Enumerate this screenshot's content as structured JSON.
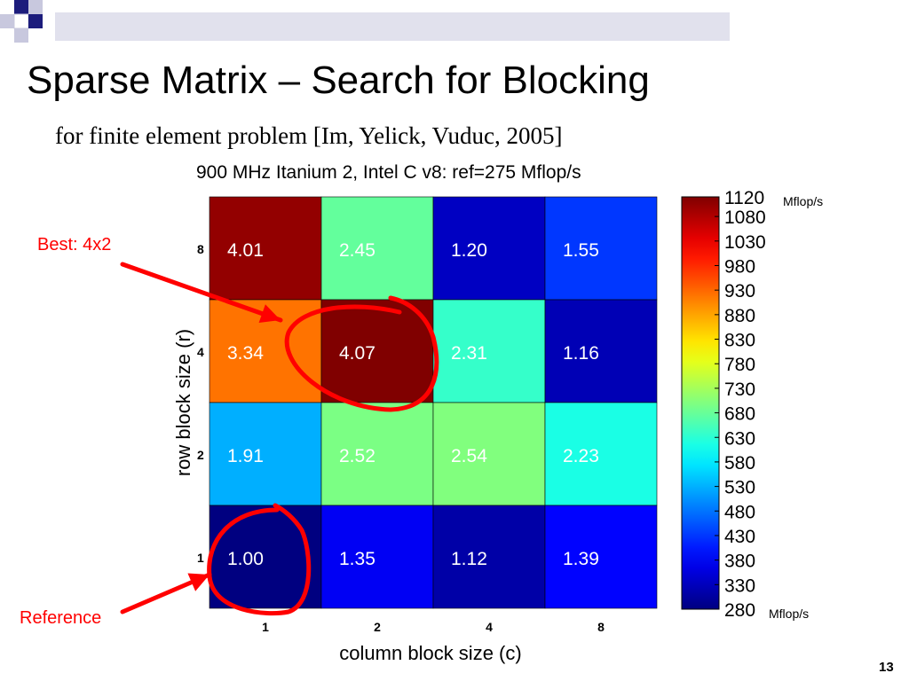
{
  "slide": {
    "title": "Sparse Matrix – Search for Blocking",
    "subtitle": "for finite element problem [Im, Yelick, Vuduc, 2005]",
    "page_number": "13",
    "annotations": {
      "best": "Best: 4x2",
      "reference": "Reference"
    },
    "colors": {
      "annotation": "#ff0000",
      "deco_dark": "#1c1c7c",
      "deco_light": "#c8c8de"
    }
  },
  "chart_data": {
    "type": "heatmap",
    "title": "900 MHz Itanium 2, Intel C v8: ref=275 Mflop/s",
    "xlabel": "column block size (c)",
    "ylabel": "row block size (r)",
    "x_categories": [
      "1",
      "2",
      "4",
      "8"
    ],
    "y_categories": [
      "8",
      "4",
      "2",
      "1"
    ],
    "values": [
      [
        4.01,
        2.45,
        1.2,
        1.55
      ],
      [
        3.34,
        4.07,
        2.31,
        1.16
      ],
      [
        1.91,
        2.52,
        2.54,
        2.23
      ],
      [
        1.0,
        1.35,
        1.12,
        1.39
      ]
    ],
    "cell_labels": [
      [
        "4.01",
        "2.45",
        "1.20",
        "1.55"
      ],
      [
        "3.34",
        "4.07",
        "2.31",
        "1.16"
      ],
      [
        "1.91",
        "2.52",
        "2.54",
        "2.23"
      ],
      [
        "1.00",
        "1.35",
        "1.12",
        "1.39"
      ]
    ],
    "colorbar": {
      "ticks": [
        "1120",
        "1080",
        "1030",
        "980",
        "930",
        "880",
        "830",
        "780",
        "730",
        "680",
        "630",
        "580",
        "530",
        "480",
        "430",
        "380",
        "330",
        "280"
      ],
      "min": 280,
      "max": 1120,
      "top_unit": "Mflop/s",
      "bottom_unit": "Mflop/s",
      "colormap": "jet"
    },
    "highlighted": {
      "best": [
        1,
        1
      ],
      "reference": [
        3,
        0
      ]
    }
  }
}
